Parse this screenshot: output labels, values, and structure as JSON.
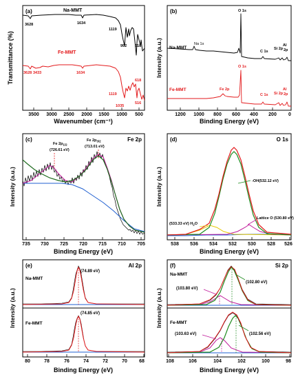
{
  "figure": {
    "panel_a": {
      "label": "(a)",
      "ylabel": "Transmittance (%)",
      "xlabel": "Wavenumber (cm⁻¹)",
      "xticks": [
        "3500",
        "3000",
        "2500",
        "2000",
        "1500",
        "1000",
        "500"
      ],
      "series_labels": {
        "na": "Na-MMT",
        "fe": "Fe-MMT"
      },
      "na_peaks": [
        "3628",
        "1634",
        "1119",
        "992",
        "518"
      ],
      "fe_peaks": [
        "3628",
        "3433",
        "1634",
        "1119",
        "1035",
        "618",
        "516"
      ],
      "colors": {
        "na": "#000000",
        "fe": "#e31a1c"
      }
    },
    "panel_b": {
      "label": "(b)",
      "ylabel": "Intensity (a.u.)",
      "xlabel": "Binding Energy (eV)",
      "xticks": [
        "1200",
        "1000",
        "800",
        "600",
        "400",
        "200",
        "0"
      ],
      "series_labels": {
        "na": "Na-MMT",
        "fe": "Fe-MMT"
      },
      "annotations": {
        "o1s_top": "O 1s",
        "o1s_bottom": "O 1s",
        "na1s": "Na 1s",
        "fe2p": "Fe 2p",
        "c1s_top": "C 1s",
        "c1s_bottom": "C 1s",
        "si2p_top": "Si 2p",
        "si2p_bottom": "Si 2p",
        "al2p_top_a": "Al",
        "al2p_top_b": "2p",
        "al2p_bottom_a": "Al",
        "al2p_bottom_b": "2p"
      }
    },
    "panel_c": {
      "label": "(c)",
      "corner": "Fe 2p",
      "ylabel": "Intensity (a.u.)",
      "xlabel": "Binding Energy (eV)",
      "xticks": [
        "735",
        "730",
        "725",
        "720",
        "715",
        "710",
        "705"
      ],
      "peak1_name": "Fe 2p",
      "peak1_sub": "1/2",
      "peak1_value": "(726.61 eV)",
      "peak2_name": "Fe 2p",
      "peak2_sub": "3/2",
      "peak2_value": "(713.01 eV)"
    },
    "panel_d": {
      "label": "(d)",
      "corner": "O 1s",
      "ylabel": "Intensity (a.u.)",
      "xlabel": "Binding Energy (eV)",
      "xticks": [
        "538",
        "536",
        "534",
        "532",
        "530",
        "528",
        "526"
      ],
      "oh_label": "-OH(532.12 eV)",
      "h2o_label": "(533.33 eV) H",
      "h2o_sub": "2",
      "h2o_tail": "O",
      "lattice_label": "Lattice O (530.80 eV)"
    },
    "panel_e": {
      "label": "(e)",
      "corner": "Al 2p",
      "ylabel": "Intensity (a.u.)",
      "xlabel": "Binding Energy (eV)",
      "xticks": [
        "80",
        "78",
        "76",
        "74",
        "72",
        "70",
        "68"
      ],
      "na_label": "Na-MMT",
      "fe_label": "Fe-MMT",
      "na_peak": "(74.89 eV)",
      "fe_peak": "(74.85 eV)"
    },
    "panel_f": {
      "label": "(f)",
      "corner": "Si 2p",
      "ylabel": "Intensity (a.u.)",
      "xlabel": "Binding Energy (eV)",
      "xticks": [
        "108",
        "106",
        "104",
        "102",
        "100",
        "98"
      ],
      "na_label": "Na-MMT",
      "fe_label": "Fe-MMT",
      "na_main": "(102.80 eV)",
      "na_minor": "(103.80 eV)",
      "fe_main": "(102.56 eV)",
      "fe_minor": "(103.63 eV)"
    }
  },
  "chart_data": [
    {
      "type": "line",
      "panel": "(a)",
      "xlabel": "Wavenumber (cm⁻¹)",
      "ylabel": "Transmittance (%)",
      "xlim": [
        3900,
        400
      ],
      "xticks": [
        3500,
        3000,
        2500,
        2000,
        1500,
        1000,
        500
      ],
      "series": [
        {
          "name": "Na-MMT",
          "color": "#000000",
          "peaks": [
            3628,
            1634,
            1119,
            992,
            518
          ]
        },
        {
          "name": "Fe-MMT",
          "color": "#e31a1c",
          "peaks": [
            3628,
            3433,
            1634,
            1119,
            1035,
            618,
            516
          ]
        }
      ]
    },
    {
      "type": "line",
      "panel": "(b)",
      "xlabel": "Binding Energy (eV)",
      "ylabel": "Intensity (a.u.)",
      "xlim": [
        1350,
        0
      ],
      "xticks": [
        1200,
        1000,
        800,
        600,
        400,
        200,
        0
      ],
      "series": [
        {
          "name": "Na-MMT",
          "color": "#000000",
          "peaks": {
            "Na 1s": 1072,
            "O 1s": 532,
            "C 1s": 285,
            "Si 2p": 103,
            "Al 2p": 75
          }
        },
        {
          "name": "Fe-MMT",
          "color": "#e31a1c",
          "peaks": {
            "Fe 2p": 711,
            "O 1s": 532,
            "C 1s": 285,
            "Si 2p": 103,
            "Al 2p": 75
          }
        }
      ]
    },
    {
      "type": "line",
      "panel": "(c)",
      "title": "Fe 2p",
      "xlabel": "Binding Energy (eV)",
      "ylabel": "Intensity (a.u.)",
      "xlim": [
        736,
        704
      ],
      "xticks": [
        735,
        730,
        725,
        720,
        715,
        710,
        705
      ],
      "peaks": [
        {
          "name": "Fe 2p1/2",
          "x": 726.61
        },
        {
          "name": "Fe 2p3/2",
          "x": 713.01
        }
      ]
    },
    {
      "type": "line",
      "panel": "(d)",
      "title": "O 1s",
      "xlabel": "Binding Energy (eV)",
      "ylabel": "Intensity (a.u.)",
      "xlim": [
        538,
        525.5
      ],
      "xticks": [
        538,
        536,
        534,
        532,
        530,
        528,
        526
      ],
      "peaks": [
        {
          "name": "-OH",
          "x": 532.12
        },
        {
          "name": "H2O",
          "x": 533.33
        },
        {
          "name": "Lattice O",
          "x": 530.8
        }
      ]
    },
    {
      "type": "line",
      "panel": "(e)",
      "title": "Al 2p",
      "xlabel": "Binding Energy (eV)",
      "ylabel": "Intensity (a.u.)",
      "xlim": [
        80.5,
        68
      ],
      "xticks": [
        80,
        78,
        76,
        74,
        72,
        70,
        68
      ],
      "series": [
        {
          "name": "Na-MMT",
          "peak": 74.89
        },
        {
          "name": "Fe-MMT",
          "peak": 74.85
        }
      ]
    },
    {
      "type": "line",
      "panel": "(f)",
      "title": "Si 2p",
      "xlabel": "Binding Energy (eV)",
      "ylabel": "Intensity (a.u.)",
      "xlim": [
        108,
        98
      ],
      "xticks": [
        108,
        106,
        104,
        102,
        100,
        98
      ],
      "series": [
        {
          "name": "Na-MMT",
          "peaks": [
            102.8,
            103.8
          ]
        },
        {
          "name": "Fe-MMT",
          "peaks": [
            102.56,
            103.63
          ]
        }
      ]
    }
  ]
}
